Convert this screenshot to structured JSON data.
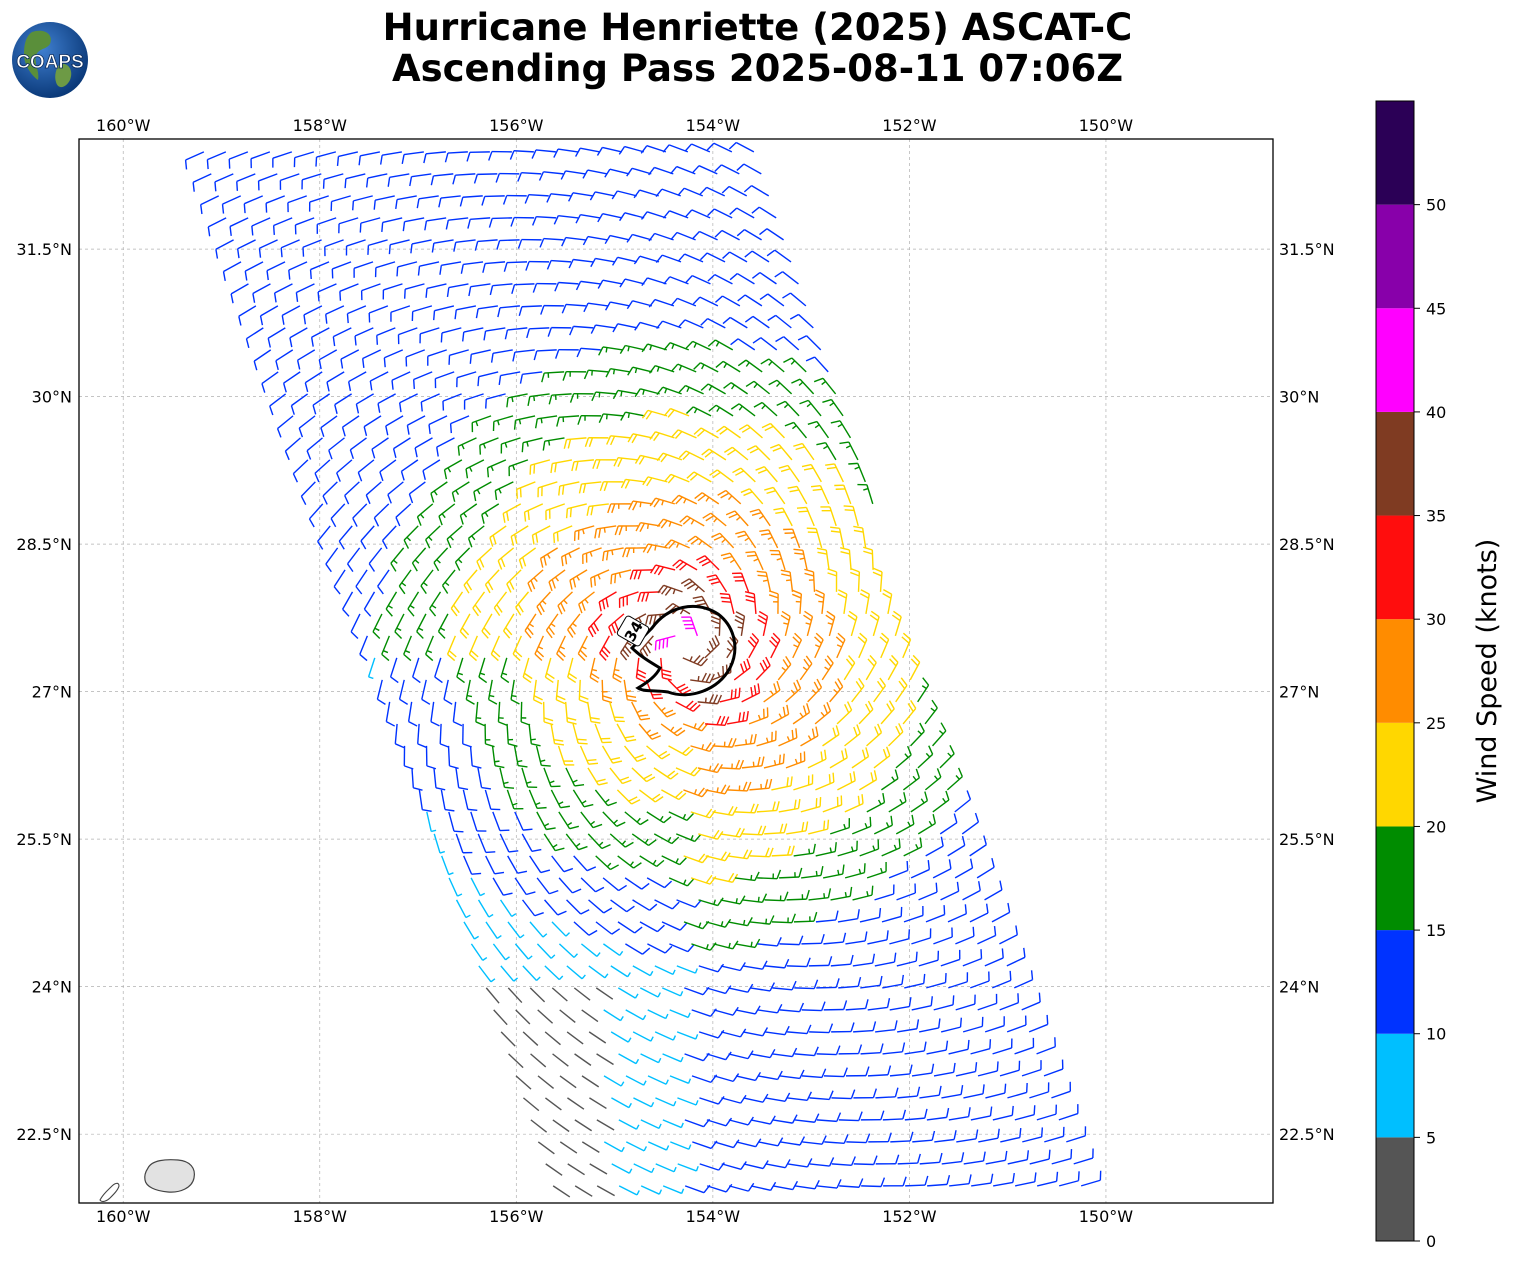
{
  "header": {
    "title_line1": "Hurricane Henriette (2025) ASCAT-C",
    "title_line2": "Ascending Pass 2025-08-11 07:06Z",
    "logo_text": "COAPS"
  },
  "map": {
    "lon_range": [
      -160.45,
      -148.3
    ],
    "lat_range": [
      21.8,
      32.62
    ],
    "lon_ticks": [
      {
        "value": -160,
        "label": "160°W"
      },
      {
        "value": -158,
        "label": "158°W"
      },
      {
        "value": -156,
        "label": "156°W"
      },
      {
        "value": -154,
        "label": "154°W"
      },
      {
        "value": -152,
        "label": "152°W"
      },
      {
        "value": -150,
        "label": "150°W"
      }
    ],
    "lat_ticks": [
      {
        "value": 31.5,
        "label": "31.5°N"
      },
      {
        "value": 30,
        "label": "30°N"
      },
      {
        "value": 28.5,
        "label": "28.5°N"
      },
      {
        "value": 27,
        "label": "27°N"
      },
      {
        "value": 25.5,
        "label": "25.5°N"
      },
      {
        "value": 24,
        "label": "24°N"
      },
      {
        "value": 22.5,
        "label": "22.5°N"
      }
    ],
    "gridlines": true,
    "contour_label": "34",
    "storm_center": {
      "lon": -154.3,
      "lat": 27.45
    },
    "swath_corners": {
      "top_left": {
        "lon": -159.2,
        "lat": 32.55
      },
      "top_right": {
        "lon": -153.5,
        "lat": 32.55
      },
      "bottom_right": {
        "lon": -150.2,
        "lat": 21.9
      },
      "bottom_left": {
        "lon": -155.6,
        "lat": 21.9
      }
    },
    "islands": [
      "Kauai",
      "Niihau"
    ]
  },
  "colorbar": {
    "title": "Wind Speed (knots)",
    "ticks": [
      "0",
      "5",
      "10",
      "15",
      "20",
      "25",
      "30",
      "35",
      "40",
      "45",
      "50"
    ],
    "bins": [
      {
        "min": 0,
        "max": 5,
        "color": "#555555"
      },
      {
        "min": 5,
        "max": 10,
        "color": "#00BFFF"
      },
      {
        "min": 10,
        "max": 15,
        "color": "#0033FF"
      },
      {
        "min": 15,
        "max": 20,
        "color": "#008C00"
      },
      {
        "min": 20,
        "max": 25,
        "color": "#FFD700"
      },
      {
        "min": 25,
        "max": 30,
        "color": "#FF8C00"
      },
      {
        "min": 30,
        "max": 35,
        "color": "#FF0D0D"
      },
      {
        "min": 35,
        "max": 40,
        "color": "#7F3B22"
      },
      {
        "min": 40,
        "max": 45,
        "color": "#FF00FF"
      },
      {
        "min": 45,
        "max": 50,
        "color": "#8800AA"
      },
      {
        "min": 50,
        "max": 55,
        "color": "#2B0056"
      }
    ]
  }
}
